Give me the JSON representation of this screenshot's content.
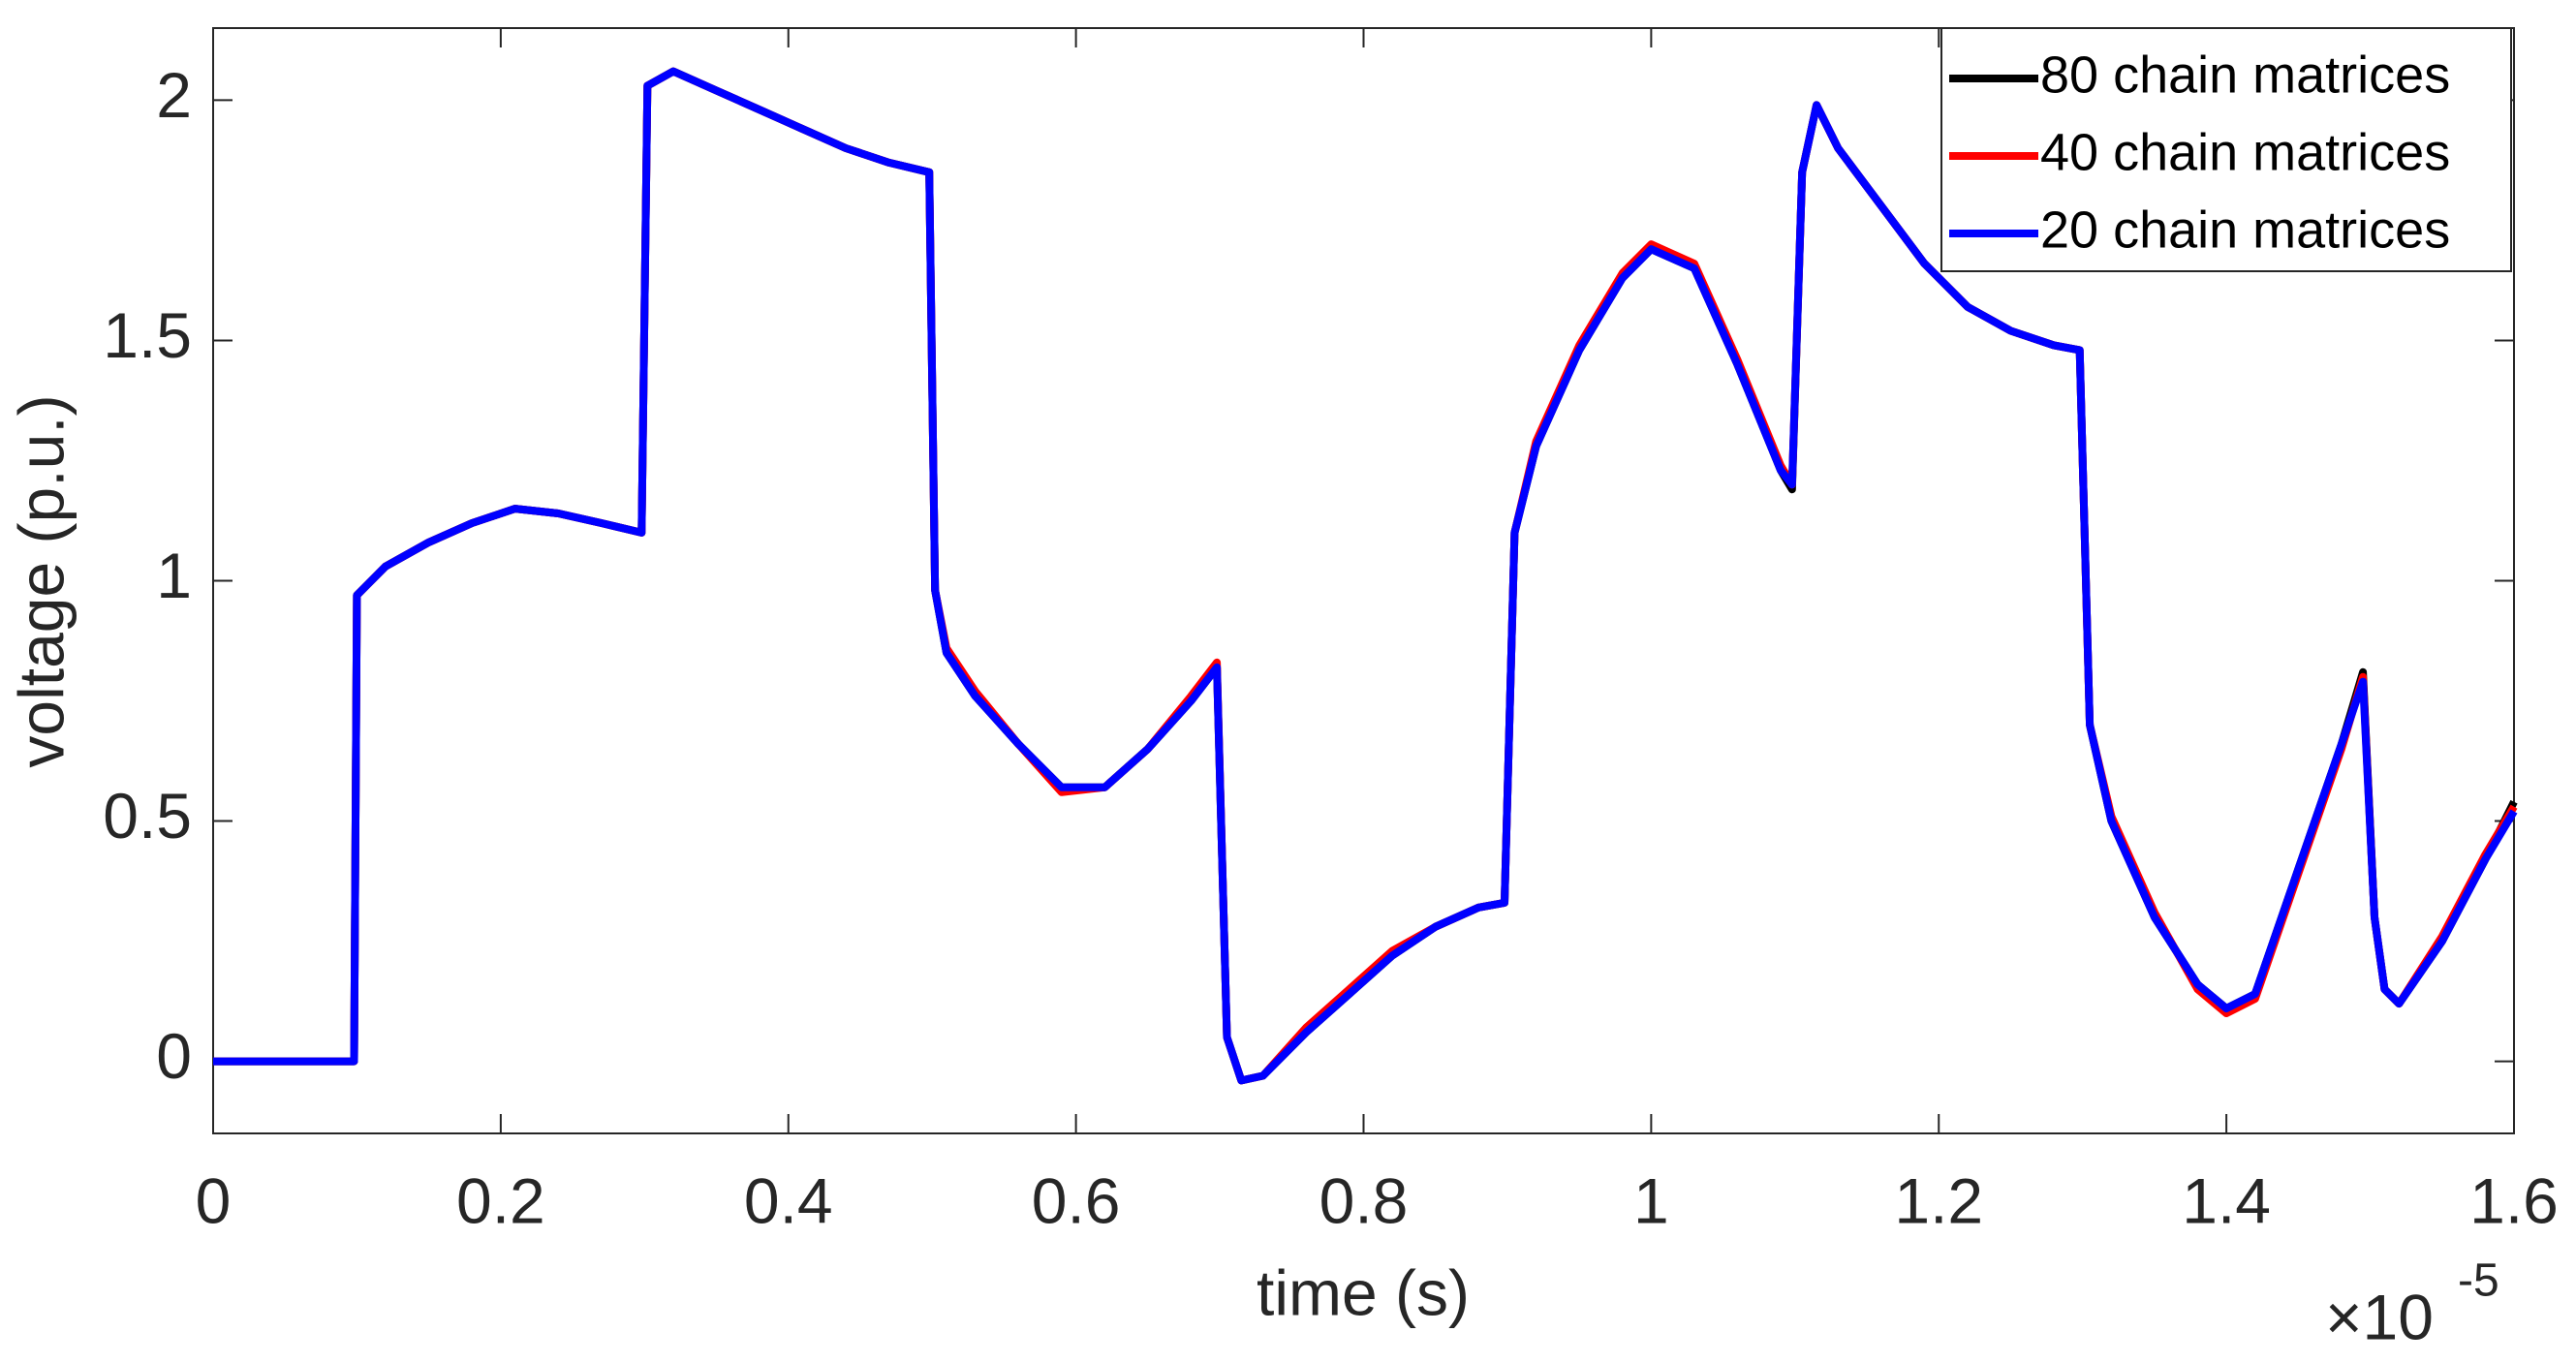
{
  "chart_data": {
    "type": "line",
    "xlabel": "time (s)",
    "ylabel": "voltage (p.u.)",
    "x_multiplier": "×10",
    "x_exponent": "-5",
    "x": [
      0,
      0.05,
      0.098,
      0.1,
      0.12,
      0.15,
      0.18,
      0.21,
      0.24,
      0.27,
      0.298,
      0.302,
      0.32,
      0.35,
      0.38,
      0.41,
      0.44,
      0.47,
      0.498,
      0.502,
      0.51,
      0.53,
      0.56,
      0.59,
      0.62,
      0.65,
      0.68,
      0.698,
      0.705,
      0.715,
      0.73,
      0.76,
      0.79,
      0.82,
      0.85,
      0.88,
      0.898,
      0.905,
      0.92,
      0.95,
      0.98,
      1.0,
      1.03,
      1.06,
      1.09,
      1.098,
      1.105,
      1.115,
      1.13,
      1.16,
      1.19,
      1.22,
      1.25,
      1.28,
      1.298,
      1.305,
      1.32,
      1.35,
      1.38,
      1.4,
      1.42,
      1.45,
      1.48,
      1.495,
      1.503,
      1.51,
      1.52,
      1.55,
      1.58,
      1.6
    ],
    "series": [
      {
        "name": "80 chain matrices",
        "color": "#000000",
        "values": [
          0,
          0,
          0,
          0.97,
          1.03,
          1.08,
          1.12,
          1.15,
          1.14,
          1.12,
          1.1,
          2.03,
          2.06,
          2.02,
          1.98,
          1.94,
          1.9,
          1.87,
          1.85,
          0.98,
          0.85,
          0.76,
          0.66,
          0.57,
          0.57,
          0.65,
          0.75,
          0.82,
          0.05,
          -0.04,
          -0.03,
          0.06,
          0.14,
          0.22,
          0.28,
          0.32,
          0.33,
          1.1,
          1.28,
          1.48,
          1.63,
          1.69,
          1.65,
          1.45,
          1.23,
          1.19,
          1.85,
          1.99,
          1.9,
          1.78,
          1.66,
          1.57,
          1.52,
          1.49,
          1.48,
          0.7,
          0.5,
          0.3,
          0.16,
          0.11,
          0.14,
          0.4,
          0.66,
          0.81,
          0.3,
          0.15,
          0.12,
          0.25,
          0.42,
          0.54
        ]
      },
      {
        "name": "40 chain matrices",
        "color": "#ff0000",
        "values": [
          0,
          0,
          0,
          0.97,
          1.03,
          1.08,
          1.12,
          1.15,
          1.14,
          1.12,
          1.1,
          2.03,
          2.06,
          2.02,
          1.98,
          1.94,
          1.9,
          1.87,
          1.85,
          0.98,
          0.86,
          0.77,
          0.66,
          0.56,
          0.57,
          0.65,
          0.76,
          0.83,
          0.05,
          -0.04,
          -0.03,
          0.07,
          0.15,
          0.23,
          0.28,
          0.32,
          0.33,
          1.1,
          1.29,
          1.49,
          1.64,
          1.7,
          1.66,
          1.46,
          1.24,
          1.2,
          1.85,
          1.99,
          1.9,
          1.78,
          1.66,
          1.57,
          1.52,
          1.49,
          1.48,
          0.7,
          0.51,
          0.31,
          0.15,
          0.1,
          0.13,
          0.39,
          0.65,
          0.8,
          0.3,
          0.15,
          0.12,
          0.26,
          0.43,
          0.53
        ]
      },
      {
        "name": "20 chain matrices",
        "color": "#0000ff",
        "values": [
          0,
          0,
          0,
          0.97,
          1.03,
          1.08,
          1.12,
          1.15,
          1.14,
          1.12,
          1.1,
          2.03,
          2.06,
          2.02,
          1.98,
          1.94,
          1.9,
          1.87,
          1.85,
          0.98,
          0.85,
          0.76,
          0.66,
          0.57,
          0.57,
          0.65,
          0.75,
          0.82,
          0.05,
          -0.04,
          -0.03,
          0.06,
          0.14,
          0.22,
          0.28,
          0.32,
          0.33,
          1.1,
          1.28,
          1.48,
          1.63,
          1.69,
          1.65,
          1.45,
          1.23,
          1.2,
          1.85,
          1.99,
          1.9,
          1.78,
          1.66,
          1.57,
          1.52,
          1.49,
          1.48,
          0.7,
          0.5,
          0.3,
          0.16,
          0.11,
          0.14,
          0.4,
          0.66,
          0.79,
          0.3,
          0.15,
          0.12,
          0.25,
          0.42,
          0.52
        ]
      }
    ],
    "xlim": [
      0,
      1.6
    ],
    "ylim": [
      -0.15,
      2.15
    ],
    "xticks": [
      0,
      0.2,
      0.4,
      0.6,
      0.8,
      1,
      1.2,
      1.4,
      1.6
    ],
    "yticks": [
      0,
      0.5,
      1,
      1.5,
      2
    ],
    "grid": false,
    "legend_position": "northeast"
  }
}
